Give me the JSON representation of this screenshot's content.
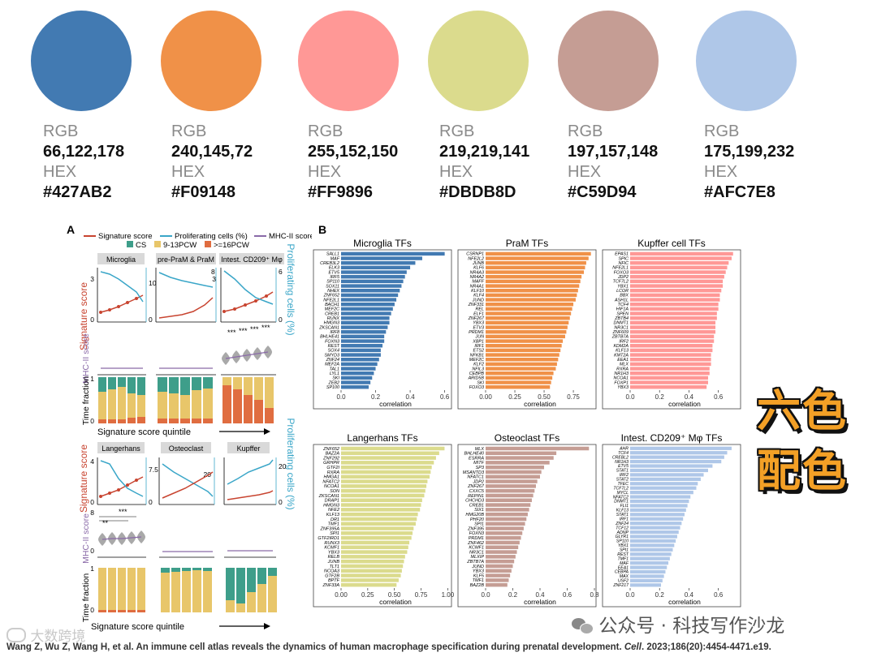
{
  "palette": [
    {
      "rgb_label": "RGB",
      "rgb": "66,122,178",
      "hex_label": "HEX",
      "hex": "#427AB2"
    },
    {
      "rgb_label": "RGB",
      "rgb": "240,145,72",
      "hex_label": "HEX",
      "hex": "#F09148"
    },
    {
      "rgb_label": "RGB",
      "rgb": "255,152,150",
      "hex_label": "HEX",
      "hex": "#FF9896"
    },
    {
      "rgb_label": "RGB",
      "rgb": "219,219,141",
      "hex_label": "HEX",
      "hex": "#DBDB8D"
    },
    {
      "rgb_label": "RGB",
      "rgb": "197,157,148",
      "hex_label": "HEX",
      "hex": "#C59D94"
    },
    {
      "rgb_label": "RGB",
      "rgb": "175,199,232",
      "hex_label": "HEX",
      "hex": "#AFC7E8"
    }
  ],
  "stamp": {
    "line1": "六色",
    "line2": "配色"
  },
  "watermark_right": "公众号 · 科技写作沙龙",
  "watermark_left": "大数跨境",
  "citation": {
    "text": "Wang Z, Wu Z, Wang H, et al. An immune cell atlas reveals the dynamics of human macrophage specification during prenatal development. ",
    "journal": "Cell",
    "rest": ". 2023;186(20):4454-4471.e19."
  },
  "panel_a": {
    "letter": "A",
    "legend": {
      "signature": "Signature score",
      "proliferating": "Proliferating cells (%)",
      "mhc": "MHC-II score",
      "cs": "CS",
      "pcw913": "9-13PCW",
      "pcw16": ">=16PCW"
    },
    "y_signature": "Signature score",
    "y_proliferating": "Proliferating cells (%)",
    "y_mhc": "MHC-II score",
    "y_time": "Time fraction",
    "x_label": "Signature score quintile",
    "top_titles": [
      "Microglia",
      "pre-PraM & PraM",
      "Intest. CD209⁺ Mφ"
    ],
    "bottom_titles": [
      "Langerhans",
      "Osteoclast",
      "Kupffer"
    ],
    "top_ticks": {
      "sig_max": "3",
      "sig_min": "0",
      "pro_a_max": "10",
      "pro_a_min": "0",
      "sig_b_max": "8",
      "pro_c_max": "6",
      "sig_c_max": "3",
      "pro_c_min": "0",
      "frac_max": "1",
      "frac_min": "0"
    },
    "bottom_ticks": {
      "sig_max": "4",
      "sig_min": "0",
      "pro_a_max": "7.5",
      "pro_a_min": "0",
      "sig_b_max": "20",
      "sig_c_max": "20",
      "pro_c_min": "0",
      "mhc_max": "8",
      "mhc_min": "0",
      "frac_max": "1",
      "frac_min": "0"
    },
    "stars": "***",
    "stars2": "**"
  },
  "panel_b": {
    "letter": "B",
    "x_label": "correlation",
    "subplots": [
      {
        "title": "Microglia  TFs",
        "color": "#427AB2",
        "genes": [
          "SALL1",
          "MAF",
          "CREB3L2",
          "ELK3",
          "ETV5",
          "IRF5",
          "SP110",
          "SOX11",
          "NHEX",
          "ZNF652",
          "NFE2L1",
          "BACH1",
          "MEF2C",
          "CREB1",
          "RUNX",
          "HMGN3",
          "ZKSCAN1",
          "IRF8",
          "BHLHE41",
          "FOXN3",
          "REST",
          "SOX4",
          "SMYD3",
          "ZNF24",
          "MEF2A",
          "TAL1",
          "LYL1",
          "SKI",
          "ZEB2",
          "SP100"
        ],
        "values": [
          0.6,
          0.47,
          0.43,
          0.4,
          0.38,
          0.37,
          0.36,
          0.35,
          0.34,
          0.33,
          0.32,
          0.31,
          0.3,
          0.29,
          0.28,
          0.28,
          0.27,
          0.26,
          0.25,
          0.25,
          0.24,
          0.23,
          0.23,
          0.22,
          0.21,
          0.2,
          0.19,
          0.18,
          0.17,
          0.16
        ],
        "ticks": [
          0.0,
          0.2,
          0.4,
          0.6
        ],
        "tick_labels": [
          "0.0",
          "0.2",
          "0.4",
          "0.6"
        ],
        "xmax": 0.63
      },
      {
        "title": "PraM  TFs",
        "color": "#F09148",
        "genes": [
          "CSRNP1",
          "NFE2L2",
          "JUNB",
          "KLF6",
          "NR4A3",
          "NR4A2",
          "MAFF",
          "NR4A1",
          "KLF10",
          "KLF4",
          "JUND",
          "ZNF331",
          "REL",
          "ELF1",
          "ZNF267",
          "YBX3",
          "ETV3",
          "PRDM1",
          "JUN",
          "XBP1",
          "IRF1",
          "ETS2",
          "NFKB1",
          "MEF2C",
          "KLF2",
          "NFIL3",
          "CEBPB",
          "ARID5B",
          "SKI",
          "FOXO3"
        ],
        "values": [
          0.9,
          0.88,
          0.86,
          0.85,
          0.84,
          0.82,
          0.81,
          0.8,
          0.79,
          0.78,
          0.77,
          0.75,
          0.74,
          0.73,
          0.72,
          0.71,
          0.7,
          0.69,
          0.68,
          0.66,
          0.65,
          0.64,
          0.63,
          0.62,
          0.61,
          0.6,
          0.58,
          0.57,
          0.56,
          0.55
        ],
        "ticks": [
          0.0,
          0.25,
          0.5,
          0.75
        ],
        "tick_labels": [
          "0.00",
          "0.25",
          "0.50",
          "0.75"
        ],
        "xmax": 0.93
      },
      {
        "title": "Kupffer cell  TFs",
        "color": "#FF9896",
        "genes": [
          "EPAS1",
          "SPIC",
          "NFIC",
          "NFE2L1",
          "FOXO3",
          "JDP2",
          "TCF7L2",
          "YBX1",
          "LCOR",
          "BBX",
          "ASH1L",
          "TCF4",
          "HIF1A",
          "SPEN",
          "ZBTB4",
          "DNMT1",
          "NR3C1",
          "ZNF609",
          "ZBTB7A",
          "IRF2",
          "KDM2A",
          "KLF13",
          "KMT2A",
          "EEA1",
          "MLX",
          "RXRA",
          "NR1H3",
          "NCOA1",
          "FOXP1",
          "YBX3"
        ],
        "values": [
          0.7,
          0.69,
          0.67,
          0.66,
          0.65,
          0.64,
          0.63,
          0.63,
          0.62,
          0.61,
          0.61,
          0.6,
          0.6,
          0.59,
          0.59,
          0.58,
          0.58,
          0.58,
          0.57,
          0.57,
          0.56,
          0.56,
          0.55,
          0.55,
          0.55,
          0.54,
          0.54,
          0.53,
          0.53,
          0.52
        ],
        "ticks": [
          0.0,
          0.2,
          0.4,
          0.6
        ],
        "tick_labels": [
          "0.0",
          "0.2",
          "0.4",
          "0.6"
        ],
        "xmax": 0.74
      },
      {
        "title": "Langerhans  TFs",
        "color": "#DBDB8D",
        "genes": [
          "ZNF652",
          "BAZ2A",
          "ZNF292",
          "GRHPR",
          "GTF2I",
          "RXRA",
          "HMGA1",
          "NFATC2",
          "NCOA1",
          "SON",
          "ZKSCAN1",
          "DRAP1",
          "HMGN3",
          "NFE2",
          "KLF13",
          "DR1",
          "TMF1",
          "ZNF395A",
          "SPI1",
          "GTF2IRD1",
          "RUNX3",
          "KCMF1",
          "YBX3",
          "RELB",
          "JUNB",
          "TLT1",
          "NCOA3",
          "GTF2B",
          "BPTF",
          "ZNF33A"
        ],
        "values": [
          0.97,
          0.92,
          0.89,
          0.87,
          0.85,
          0.84,
          0.83,
          0.81,
          0.8,
          0.79,
          0.78,
          0.76,
          0.75,
          0.74,
          0.72,
          0.71,
          0.7,
          0.68,
          0.67,
          0.66,
          0.64,
          0.63,
          0.62,
          0.6,
          0.59,
          0.58,
          0.57,
          0.56,
          0.54,
          0.52
        ],
        "ticks": [
          0.0,
          0.25,
          0.5,
          0.75,
          1.0
        ],
        "tick_labels": [
          "0.00",
          "0.25",
          "0.50",
          "0.75",
          "1.00"
        ],
        "xmax": 1.02
      },
      {
        "title": "Osteoclast  TFs",
        "color": "#C59D94",
        "genes": [
          "MLX",
          "BHLHE40",
          "ESRRA",
          "MITF",
          "SP3",
          "MSANTD3",
          "NFATC1",
          "JDP2",
          "ZNF267",
          "CXXC5",
          "REPIN1",
          "CHCHD3",
          "CREB1",
          "SIX1",
          "HMG20B",
          "PHF20",
          "SPI1",
          "ZNF395",
          "FOXN3",
          "PRDM1",
          "ZNF462",
          "KCMF1",
          "NR3C1",
          "MLXIP",
          "ZBTB7A",
          "JUND",
          "YBX3",
          "KLF5",
          "TMF1",
          "BAZ2B"
        ],
        "values": [
          0.76,
          0.52,
          0.5,
          0.47,
          0.43,
          0.41,
          0.4,
          0.38,
          0.37,
          0.36,
          0.35,
          0.34,
          0.33,
          0.32,
          0.31,
          0.3,
          0.29,
          0.28,
          0.27,
          0.26,
          0.25,
          0.24,
          0.23,
          0.22,
          0.21,
          0.2,
          0.19,
          0.18,
          0.17,
          0.16
        ],
        "ticks": [
          0.0,
          0.2,
          0.4,
          0.6,
          0.8
        ],
        "tick_labels": [
          "0.0",
          "0.2",
          "0.4",
          "0.6",
          "0.8"
        ],
        "xmax": 0.8
      },
      {
        "title": "Intest. CD209⁺ Mφ  TFs",
        "color": "#AFC7E8",
        "genes": [
          "AHR",
          "TCF4",
          "CREBL2",
          "NR1H3",
          "ETV5",
          "STAT1",
          "IRF2",
          "STAT2",
          "TFEC",
          "TCF7L2",
          "MYCL",
          "NFATC2",
          "DNMT1",
          "FLI1",
          "KLF13",
          "STAT1",
          "IRF1",
          "ZNF24",
          "TCF12",
          "ADNP",
          "GLYR1",
          "SP110",
          "YBX1",
          "SPI1",
          "REST",
          "TMF1",
          "MAF",
          "EEA1",
          "CEBPA",
          "MAX",
          "USF2",
          "ZNF217"
        ],
        "values": [
          0.69,
          0.66,
          0.64,
          0.62,
          0.56,
          0.53,
          0.5,
          0.48,
          0.46,
          0.45,
          0.43,
          0.41,
          0.4,
          0.39,
          0.38,
          0.37,
          0.36,
          0.35,
          0.34,
          0.33,
          0.32,
          0.31,
          0.3,
          0.29,
          0.28,
          0.27,
          0.26,
          0.25,
          0.24,
          0.23,
          0.22,
          0.21
        ],
        "ticks": [
          0.0,
          0.2,
          0.4,
          0.6
        ],
        "tick_labels": [
          "0.0",
          "0.2",
          "0.4",
          "0.6"
        ],
        "xmax": 0.74
      }
    ]
  }
}
